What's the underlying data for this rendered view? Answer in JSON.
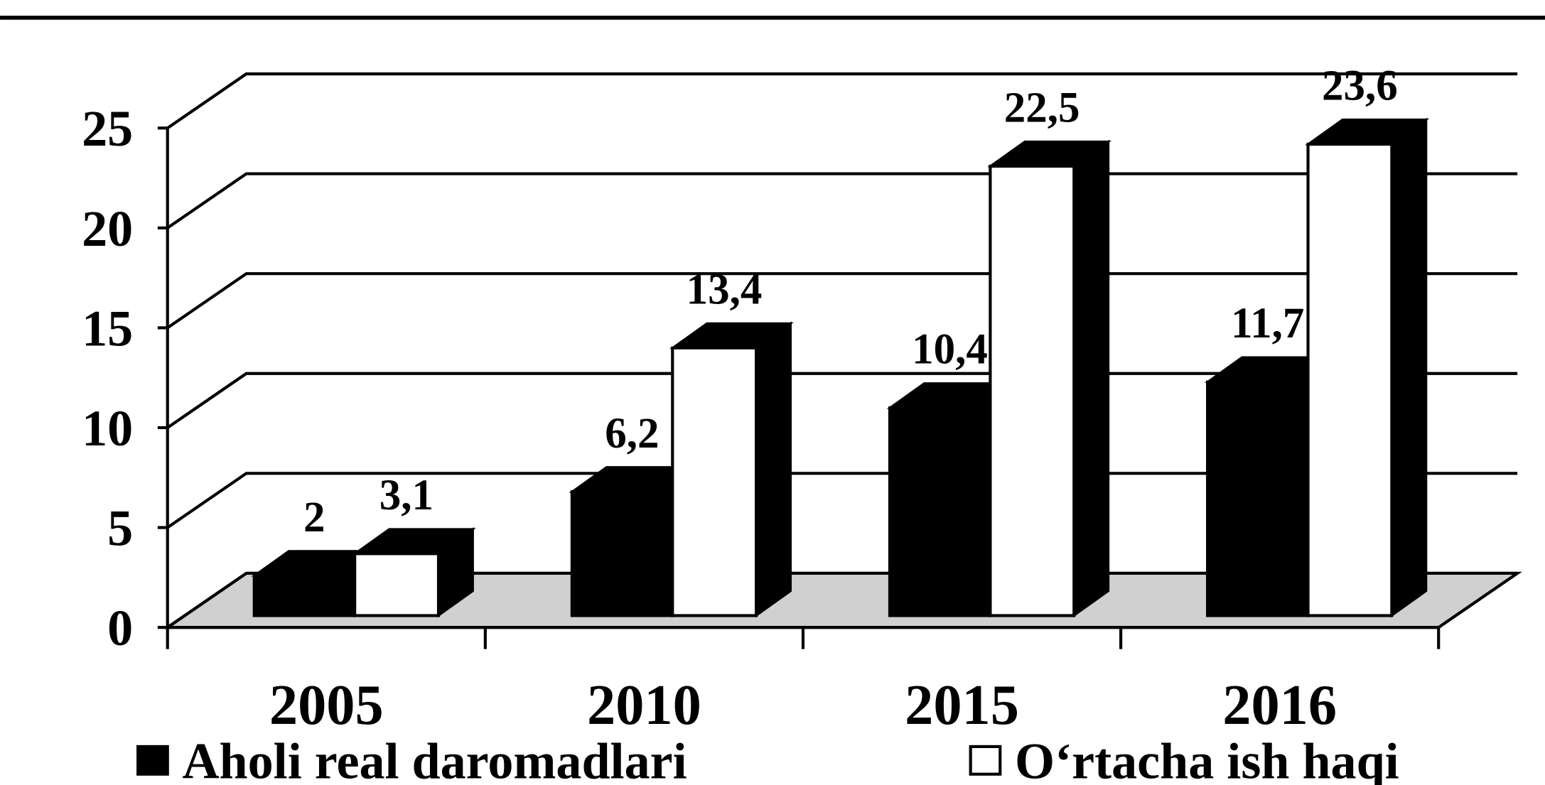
{
  "chart_data": {
    "type": "bar3d",
    "categories": [
      "2005",
      "2010",
      "2015",
      "2016"
    ],
    "series": [
      {
        "name": "Aholi real daromadlari",
        "color": "#000000",
        "values": [
          2,
          6.2,
          10.4,
          11.7
        ],
        "value_labels": [
          "2",
          "6,2",
          "10,4",
          "11,7"
        ]
      },
      {
        "name": "O‘rtacha ish haqi",
        "color": "#ffffff",
        "values": [
          3.1,
          13.4,
          22.5,
          23.6
        ],
        "value_labels": [
          "3,1",
          "13,4",
          "22,5",
          "23,6"
        ]
      }
    ],
    "ylim": [
      0,
      25
    ],
    "yticks": [
      0,
      5,
      10,
      15,
      20,
      25
    ],
    "grid": true,
    "legend": "bottom"
  }
}
